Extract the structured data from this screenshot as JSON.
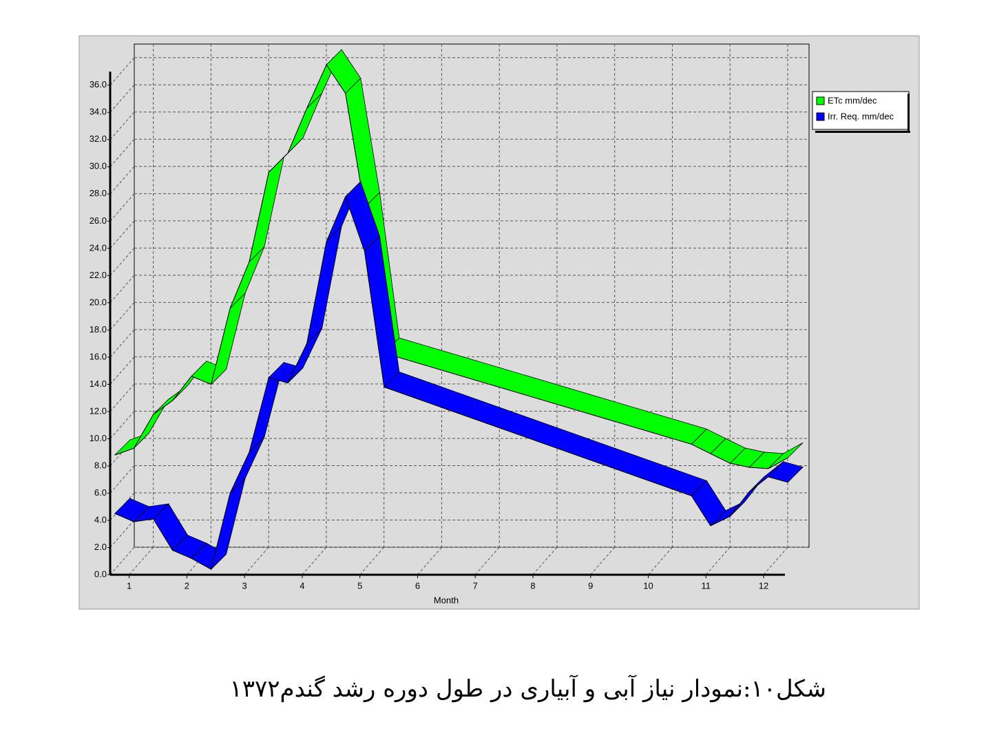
{
  "chart_data": {
    "type": "ribbon-line",
    "x_label": "Month",
    "caption": "شکل۱۰:نمودار نیاز آبی  و آبیاری در طول دوره رشد گندم۱۳۷۲",
    "x": [
      0.75,
      1.08,
      1.42,
      1.75,
      2.08,
      2.42,
      2.75,
      3.08,
      3.42,
      3.75,
      4.08,
      4.42,
      4.75,
      5.08,
      5.42,
      10.75,
      11.08,
      11.42,
      11.75,
      12.08,
      12.42
    ],
    "series": [
      {
        "name": "ETc  mm/dec",
        "color": "#00ff00",
        "values": [
          8.8,
          9.3,
          11.8,
          12.8,
          14.6,
          14.0,
          19.6,
          23.0,
          29.6,
          31.0,
          34.3,
          37.5,
          35.4,
          27.0,
          16.3,
          9.6,
          8.9,
          8.2,
          7.9,
          7.8,
          8.6
        ]
      },
      {
        "name": "Irr. Req.  mm/dec",
        "color": "#0000ff",
        "values": [
          4.5,
          3.9,
          4.1,
          1.8,
          1.2,
          0.4,
          6.0,
          9.0,
          14.5,
          14.1,
          17.0,
          24.5,
          27.8,
          23.8,
          13.8,
          5.8,
          3.6,
          4.3,
          6.1,
          7.2,
          6.8
        ]
      }
    ],
    "xlim": [
      0.67,
      12.37
    ],
    "xticks": [
      1,
      2,
      3,
      4,
      5,
      6,
      7,
      8,
      9,
      10,
      11,
      12
    ],
    "ylim": [
      0,
      37
    ],
    "yticks": [
      {
        "value": 0,
        "label": "0.0"
      },
      {
        "value": 2,
        "label": "2.0"
      },
      {
        "value": 4,
        "label": "4.0"
      },
      {
        "value": 6,
        "label": "6.0"
      },
      {
        "value": 8,
        "label": "8.0"
      },
      {
        "value": 10,
        "label": "10.0"
      },
      {
        "value": 12,
        "label": "12.0"
      },
      {
        "value": 14,
        "label": "14.0"
      },
      {
        "value": 16,
        "label": "16.0"
      },
      {
        "value": 18,
        "label": "18.0"
      },
      {
        "value": 20,
        "label": "20.0"
      },
      {
        "value": 22,
        "label": "22.0"
      },
      {
        "value": 24,
        "label": "24.0"
      },
      {
        "value": 26,
        "label": "26.0"
      },
      {
        "value": 28,
        "label": "28.0"
      },
      {
        "value": 30,
        "label": "30.0"
      },
      {
        "value": 32,
        "label": "32.0"
      },
      {
        "value": 34,
        "label": "34.0"
      },
      {
        "value": 36,
        "label": "36.0"
      }
    ],
    "grid": true,
    "legend": "upper right"
  }
}
